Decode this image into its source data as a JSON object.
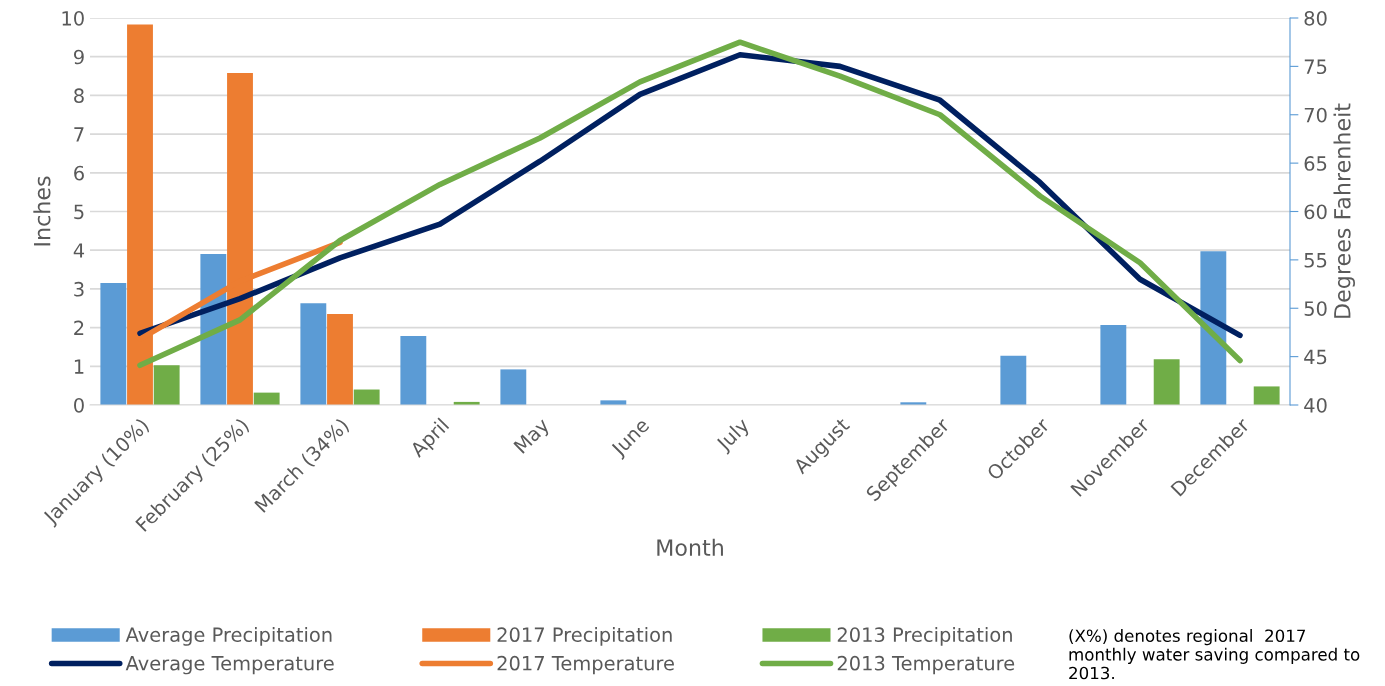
{
  "chart_data": {
    "type": "bar",
    "xlabel": "Month",
    "ylabel": "Inches",
    "y2label": "Degrees Fahrenheit",
    "categories": [
      "January (10%)",
      "February (25%)",
      "March (34%)",
      "April",
      "May",
      "June",
      "July",
      "August",
      "September",
      "October",
      "November",
      "December"
    ],
    "series": [
      {
        "name": "Average Precipitation",
        "color": "#5b9bd5",
        "values": [
          3.15,
          3.9,
          2.63,
          1.78,
          0.92,
          0.12,
          0,
          0,
          0.07,
          1.27,
          2.07,
          3.97
        ]
      },
      {
        "name": "2017 Precipitation",
        "color": "#ed7d31",
        "values": [
          9.83,
          8.58,
          2.35,
          null,
          null,
          null,
          null,
          null,
          null,
          null,
          null,
          null
        ]
      },
      {
        "name": "2013 Precipitation",
        "color": "#70ad47",
        "values": [
          1.03,
          0.32,
          0.4,
          0.08,
          0,
          0,
          0,
          0,
          0,
          0,
          1.18,
          0.48
        ]
      },
      {
        "name": "Average Temperature",
        "type": "line",
        "axis": "y2",
        "color": "#002060",
        "values": [
          47.4,
          51,
          55.2,
          58.7,
          65.2,
          72.1,
          76.2,
          75,
          71.5,
          63,
          53,
          47.2
        ]
      },
      {
        "name": "2017 Temperature",
        "type": "line",
        "axis": "y2",
        "color": "#ed7d31",
        "values": [
          46.8,
          52.8,
          56.8,
          null,
          null,
          null,
          null,
          null,
          null,
          null,
          null,
          null
        ]
      },
      {
        "name": "2013 Temperature",
        "type": "line",
        "axis": "y2",
        "color": "#70ad47",
        "values": [
          44.1,
          48.8,
          57,
          62.8,
          67.6,
          73.4,
          77.5,
          74,
          70,
          61.6,
          54.7,
          44.6
        ]
      }
    ],
    "ylim": [
      0,
      10
    ],
    "yticks": [
      0,
      1,
      2,
      3,
      4,
      5,
      6,
      7,
      8,
      9,
      10
    ],
    "y2lim": [
      40,
      80
    ],
    "y2ticks": [
      40,
      45,
      50,
      55,
      60,
      65,
      70,
      75,
      80
    ],
    "grid": "y",
    "legend": "bottom",
    "annotations": [
      "(X%) denotes regional  2017 monthly water saving compared to 2013."
    ]
  }
}
